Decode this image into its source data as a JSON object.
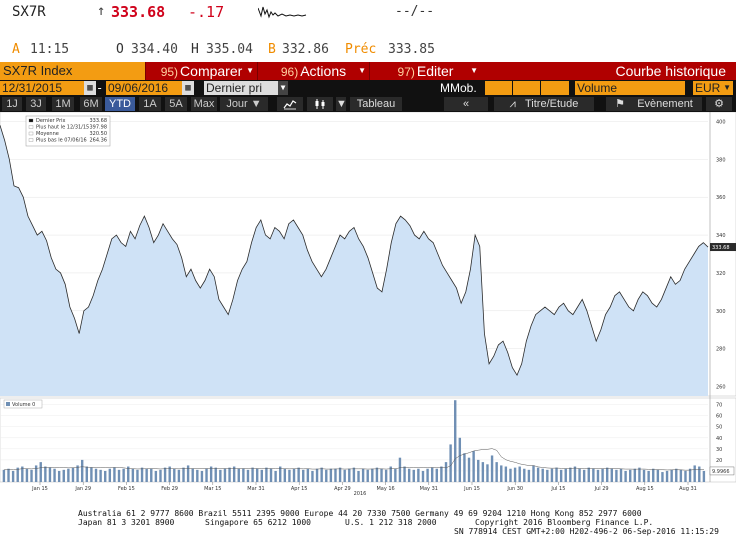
{
  "quote": {
    "symbol": "SX7R",
    "arrow": "↑",
    "last": "333.68",
    "change": "-.17",
    "trade_info": "--/--",
    "ask_label": "A",
    "ask_time": "11:15",
    "open_label": "O",
    "open": "334.40",
    "high_label": "H",
    "high": "335.04",
    "bid_label": "B",
    "bid": "332.86",
    "prev_label": "Préc",
    "prev": "333.85"
  },
  "menu": {
    "index_label": "SX7R Index",
    "compare_num": "95)",
    "compare_label": "Comparer",
    "actions_num": "96)",
    "actions_label": "Actions",
    "edit_num": "97)",
    "edit_label": "Editer",
    "title": "Courbe historique"
  },
  "range": {
    "start": "12/31/2015",
    "end": "09/06/2016",
    "dash": "-",
    "field": "Dernier pri",
    "mmob_label": "MMob.",
    "volume_field": "Volume",
    "currency": "EUR"
  },
  "periods": {
    "items": [
      "1J",
      "3J",
      "1M",
      "6M",
      "YTD",
      "1A",
      "5A",
      "Max"
    ],
    "active": "YTD",
    "frequency": "Jour"
  },
  "tools": {
    "table": "Tableau",
    "title_study": "Titre/Etude",
    "events": "Evènement"
  },
  "icons": {
    "settings": "gear-icon",
    "back": "double-chevron-left-icon",
    "flag": "flag-icon",
    "line_chart": "line-chart-icon",
    "candle": "candlestick-icon",
    "calendar": "calendar-icon"
  },
  "colors": {
    "accent_orange": "#f39c12",
    "menu_red": "#b00000",
    "price_red": "#d0021b",
    "area_fill": "#cfe2f6",
    "area_line": "#2a2a2a",
    "volume_bar": "#6f8fb4"
  },
  "chart_data": [
    {
      "type": "area",
      "legend": [
        {
          "label": "Dernier Prix",
          "value": "333.68"
        },
        {
          "label": "Plus haut le 12/31/15",
          "value": "397.98"
        },
        {
          "label": "Moyenne",
          "value": "320.50"
        },
        {
          "label": "Plus bas le 07/06/16",
          "value": "264.36"
        }
      ],
      "last_label": "333.68",
      "y_ticks": [
        "400",
        "380",
        "360",
        "340",
        "320",
        "300",
        "280",
        "260"
      ],
      "ylim": [
        255,
        405
      ],
      "x_ticks": [
        "Jan 15",
        "Jan 29",
        "Feb 15",
        "Feb 29",
        "Mar 15",
        "Mar 31",
        "Apr 15",
        "Apr 29",
        "May 16",
        "May 31",
        "Jun 15",
        "Jun 30",
        "Jul 15",
        "Jul 29",
        "Aug 15",
        "Aug 31"
      ],
      "x_year": "2016",
      "values": [
        397.98,
        390,
        380,
        366,
        365,
        360,
        350,
        345,
        340,
        342,
        337,
        328,
        322,
        320,
        314,
        302,
        296,
        288,
        300,
        302,
        308,
        316,
        322,
        330,
        338,
        340,
        336,
        334,
        342,
        338,
        345,
        350,
        344,
        336,
        340,
        346,
        342,
        338,
        335,
        328,
        318,
        322,
        316,
        312,
        316,
        322,
        318,
        306,
        302,
        298,
        306,
        316,
        322,
        326,
        336,
        344,
        348,
        340,
        338,
        344,
        342,
        338,
        346,
        348,
        344,
        340,
        332,
        326,
        322,
        318,
        322,
        328,
        334,
        340,
        338,
        342,
        344,
        338,
        334,
        328,
        320,
        312,
        310,
        322,
        336,
        346,
        350,
        348,
        345,
        340,
        338,
        342,
        338,
        336,
        330,
        324,
        320,
        316,
        312,
        304,
        310,
        322,
        340,
        334,
        288,
        272,
        276,
        282,
        284,
        278,
        270,
        266,
        272,
        284,
        292,
        298,
        300,
        302,
        300,
        298,
        302,
        304,
        300,
        298,
        302,
        306,
        300,
        292,
        284,
        290,
        298,
        302,
        308,
        310,
        306,
        302,
        300,
        306,
        310,
        308,
        304,
        302,
        306,
        312,
        318,
        314,
        316,
        322,
        326,
        330,
        334,
        336,
        333.68
      ]
    },
    {
      "type": "bar",
      "legend": [
        {
          "label": "Volume",
          "value": "0"
        }
      ],
      "y_ticks": [
        "70",
        "60",
        "50",
        "40",
        "30",
        "20",
        "10"
      ],
      "ylim": [
        0,
        76
      ],
      "last_label": "9.9966",
      "values": [
        11,
        12,
        10,
        13,
        14,
        12,
        11,
        15,
        18,
        14,
        13,
        12,
        10,
        11,
        12,
        13,
        15,
        20,
        14,
        13,
        12,
        11,
        10,
        12,
        13,
        11,
        12,
        14,
        12,
        11,
        13,
        12,
        12,
        10,
        11,
        13,
        14,
        12,
        11,
        13,
        15,
        12,
        11,
        10,
        12,
        14,
        13,
        11,
        12,
        13,
        14,
        12,
        12,
        11,
        13,
        12,
        11,
        13,
        12,
        10,
        14,
        12,
        11,
        12,
        13,
        11,
        12,
        10,
        12,
        13,
        11,
        12,
        12,
        13,
        11,
        12,
        13,
        10,
        12,
        11,
        12,
        13,
        12,
        11,
        14,
        12,
        22,
        14,
        12,
        11,
        12,
        10,
        12,
        13,
        12,
        14,
        18,
        34,
        74,
        40,
        26,
        22,
        28,
        20,
        18,
        16,
        24,
        18,
        15,
        14,
        12,
        13,
        14,
        12,
        11,
        15,
        13,
        12,
        11,
        12,
        13,
        11,
        12,
        13,
        14,
        12,
        11,
        13,
        12,
        11,
        12,
        13,
        12,
        11,
        12,
        10,
        11,
        12,
        13,
        11,
        10,
        12,
        11,
        9,
        10,
        11,
        12,
        11,
        10,
        12,
        15,
        14,
        10
      ]
    }
  ],
  "footer": {
    "line1": "Australia 61 2 9777 8600 Brazil 5511 2395 9000 Europe 44 20 7330 7500 Germany 49 69 9204 1210 Hong Kong 852 2977 6000",
    "line2a": "Japan 81 3 3201 8900",
    "line2b": "Singapore 65 6212 1000",
    "line2c": "U.S. 1 212 318 2000",
    "line2d": "Copyright 2016 Bloomberg Finance L.P.",
    "line3": "SN 778914 CEST GMT+2:00 H202-496-2 06-Sep-2016 11:15:29"
  }
}
